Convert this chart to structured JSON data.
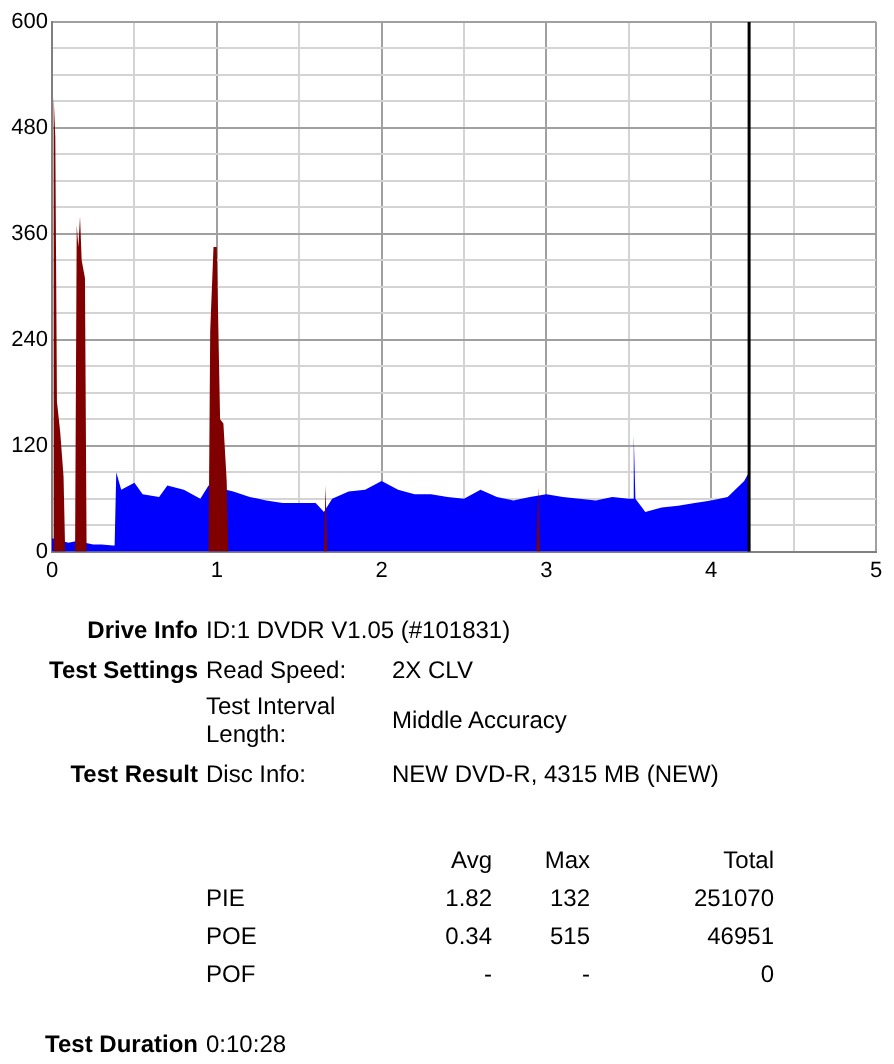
{
  "chart_data": {
    "type": "area",
    "xlim": [
      0,
      5
    ],
    "ylim": [
      0,
      600
    ],
    "xticks": [
      0,
      {
        "value": 0.5,
        "label": null
      },
      1,
      {
        "value": 1.5,
        "label": null
      },
      2,
      {
        "value": 2.5,
        "label": null
      },
      3,
      {
        "value": 3.5,
        "label": null
      },
      4,
      {
        "value": 4.5,
        "label": null
      },
      5
    ],
    "yticks": [
      0,
      {
        "value": 30,
        "label": null
      },
      {
        "value": 60,
        "label": null
      },
      {
        "value": 90,
        "label": null
      },
      120,
      {
        "value": 150,
        "label": null
      },
      {
        "value": 180,
        "label": null
      },
      {
        "value": 210,
        "label": null
      },
      240,
      {
        "value": 270,
        "label": null
      },
      {
        "value": 300,
        "label": null
      },
      {
        "value": 330,
        "label": null
      },
      360,
      {
        "value": 390,
        "label": null
      },
      {
        "value": 420,
        "label": null
      },
      {
        "value": 450,
        "label": null
      },
      480,
      {
        "value": 510,
        "label": null
      },
      {
        "value": 540,
        "label": null
      },
      {
        "value": 570,
        "label": null
      },
      600
    ],
    "grid": true,
    "legend": false,
    "series": [
      {
        "color": "#0000ff",
        "x": [
          0,
          0.05,
          0.1,
          0.15,
          0.2,
          0.25,
          0.3,
          0.37,
          0.38,
          0.39,
          0.42,
          0.5,
          0.55,
          0.65,
          0.7,
          0.8,
          0.9,
          0.95,
          1.0,
          1.1,
          1.2,
          1.3,
          1.4,
          1.5,
          1.6,
          1.65,
          1.7,
          1.8,
          1.9,
          2.0,
          2.1,
          2.2,
          2.3,
          2.4,
          2.5,
          2.6,
          2.7,
          2.8,
          2.9,
          3.0,
          3.1,
          3.2,
          3.3,
          3.4,
          3.5,
          3.52,
          3.53,
          3.54,
          3.6,
          3.7,
          3.8,
          3.9,
          4.0,
          4.1,
          4.2,
          4.23
        ],
        "values": [
          15,
          null,
          10,
          12,
          10,
          8,
          8,
          7,
          7,
          90,
          70,
          78,
          65,
          62,
          75,
          70,
          60,
          75,
          null,
          68,
          62,
          58,
          55,
          55,
          55,
          45,
          60,
          68,
          70,
          80,
          70,
          65,
          65,
          62,
          60,
          70,
          62,
          58,
          62,
          65,
          62,
          60,
          58,
          62,
          60,
          60,
          132,
          60,
          45,
          50,
          52,
          55,
          58,
          62,
          80,
          90
        ]
      },
      {
        "color": "#800000",
        "x": [
          0,
          0.01,
          0.02,
          0.03,
          0.05,
          0.07,
          0.08,
          0.14,
          0.15,
          0.16,
          0.17,
          0.18,
          0.19,
          0.2,
          0.21,
          0.95,
          0.96,
          0.98,
          1.0,
          1.02,
          1.04,
          1.06,
          1.07,
          1.65,
          1.66,
          1.67,
          2.94,
          2.95,
          2.96,
          4.23
        ],
        "values": [
          0,
          515,
          470,
          170,
          135,
          85,
          0,
          0,
          370,
          345,
          380,
          330,
          320,
          310,
          0,
          0,
          250,
          345,
          345,
          150,
          145,
          80,
          0,
          0,
          75,
          0,
          0,
          73,
          0,
          0
        ]
      }
    ],
    "ref_lines": [
      {
        "axis": "x",
        "value": 4.23,
        "color": "#000000"
      }
    ],
    "annotations": [
      "Drive Info",
      "ID:1 DVDR V1.05 (#101831)",
      "Test Settings",
      "Read Speed:",
      "2X CLV",
      "Test Interval Length:",
      "Middle Accuracy",
      "Test Result",
      "Disc Info:",
      "NEW DVD-R, 4315 MB (NEW)",
      "Avg",
      "Max",
      "Total",
      "PIE",
      "1.82",
      "132",
      "251070",
      "POE",
      "0.34",
      "515",
      "46951",
      "POF",
      "-",
      "-",
      "0",
      "Test Duration",
      "0:10:28"
    ]
  }
}
